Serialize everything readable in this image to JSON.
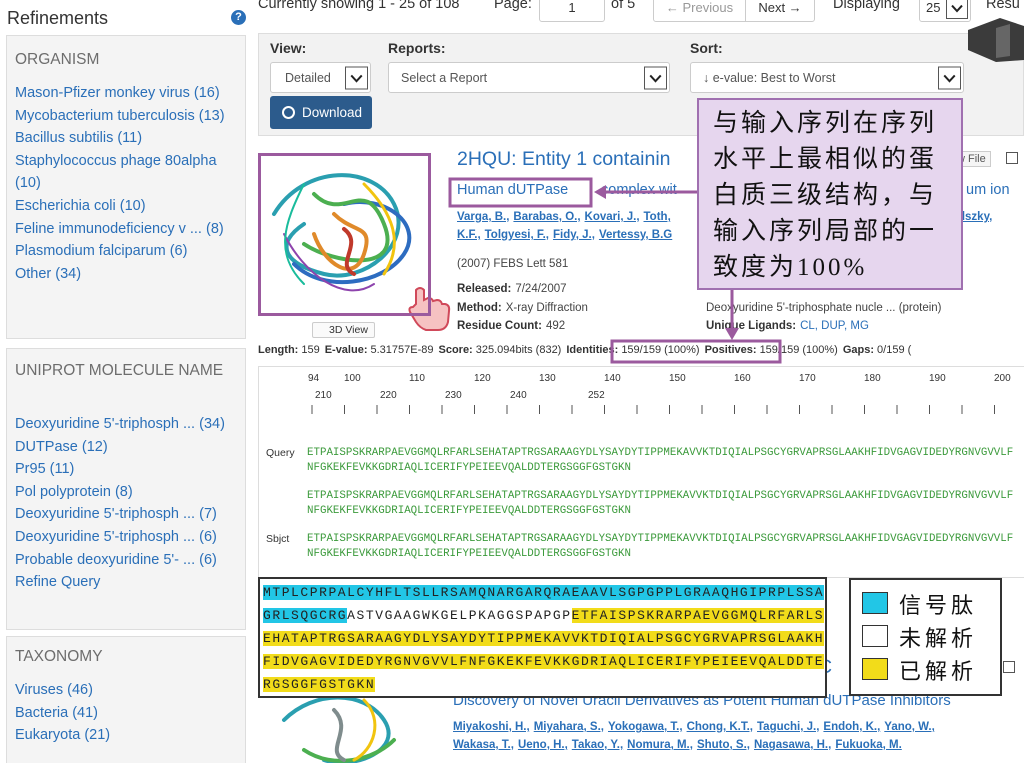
{
  "sidebar": {
    "title": "Refinements",
    "help": "?",
    "sections": [
      {
        "heading": "ORGANISM",
        "items": [
          "Mason-Pfizer monkey virus (16)",
          "Mycobacterium tuberculosis (13)",
          "Bacillus subtilis (11)",
          "Staphylococcus phage 80alpha (10)",
          "Escherichia coli (10)",
          "Feline immunodeficiency v ... (8)",
          "Plasmodium falciparum (6)",
          "Other (34)"
        ]
      },
      {
        "heading": "UNIPROT MOLECULE NAME",
        "items": [
          "Deoxyuridine 5'-triphosph ... (34)",
          "DUTPase (12)",
          "Pr95 (11)",
          "Pol polyprotein (8)",
          "Deoxyuridine 5'-triphosph ... (7)",
          "Deoxyuridine 5'-triphosph ... (6)",
          "Probable deoxyuridine 5'- ... (6)",
          "Refine Query"
        ]
      },
      {
        "heading": "TAXONOMY",
        "items": [
          "Viruses (46)",
          "Bacteria (41)",
          "Eukaryota (21)"
        ]
      }
    ]
  },
  "pager": {
    "showing": "Currently showing 1 - 25 of 108",
    "page_label": "Page:",
    "page": "1",
    "of": "of 5",
    "previous": "← Previous",
    "next": "Next →",
    "displaying_label": "Displaying",
    "displaying": "25",
    "results_label": "Resu"
  },
  "controls": {
    "view_label": "View:",
    "view": "Detailed",
    "reports_label": "Reports:",
    "reports": "Select a Report",
    "sort_label": "Sort:",
    "sort": "↓ e-value: Best to Worst",
    "download": "Download"
  },
  "results": [
    {
      "title": "2HQU: Entity 1 containin",
      "subtitle_link": "Human dUTPase",
      "subtitle_rest": "complex wit",
      "subtitle_tail": "um ion",
      "file": "w File",
      "authors_line1": [
        "Varga, B.,",
        "Barabas, O.,",
        "Kovari, J.,",
        "Toth,"
      ],
      "authors_tail": "dszky,",
      "authors_line2": [
        "K.F.,",
        "Tolgyesi, F.,",
        "Fidy, J.,",
        "Vertessy, B.G"
      ],
      "citation": "(2007) FEBS Lett 581",
      "details": [
        {
          "label": "Released:",
          "value": "7/24/2007"
        },
        {
          "label": "Method:",
          "value": "X-ray Diffraction"
        },
        {
          "label": "Residue Count:",
          "value": "492"
        }
      ],
      "molecule": "Deoxyuridine 5'-triphosphate nucle ... (protein)",
      "ligands_label": "Unique Ligands:",
      "ligands": "CL, DUP, MG",
      "view3d": "3D View",
      "stats": [
        {
          "label": "Length:",
          "value": "159"
        },
        {
          "label": "E-value:",
          "value": "5.31757E-89"
        },
        {
          "label": "Score:",
          "value": "325.094bits (832)"
        },
        {
          "label": "Identities:",
          "value": "159/159 (100%)"
        },
        {
          "label": "Positives:",
          "value": "159/159 (100%)"
        },
        {
          "label": "Gaps:",
          "value": "0/159 ("
        }
      ]
    },
    {
      "title": "C",
      "subtitle": "Discovery of Novel Uracil Derivatives as Potent Human dUTPase Inhibitors",
      "authors_line1": [
        "Miyakoshi, H.,",
        "Miyahara, S.,",
        "Yokogawa, T.,",
        "Chong, K.T.,",
        "Taguchi, J.,",
        "Endoh, K.,",
        "Yano, W.,"
      ],
      "authors_line2": [
        "Wakasa, T.,",
        "Ueno, H.,",
        "Takao, Y.,",
        "Nomura, M.,",
        "Shuto, S.,",
        "Nagasawa, H.,",
        "Fukuoka, M."
      ]
    }
  ],
  "alignment": {
    "ruler_top": [
      94,
      100,
      110,
      120,
      130,
      140,
      150,
      160,
      170,
      180,
      190,
      200
    ],
    "ruler_bottom": [
      210,
      220,
      230,
      240,
      252
    ],
    "rows": [
      {
        "label": "Query",
        "lines": [
          "ETPAISPSKRARPAEVGGMQLRFARLSEHATAPTRGSARAAGYDLYSAYDYTIPPMEKAVVKTDIQIALPSGCYGRVAPRSGLAAKHFIDVGAGVIDEDYRGNVGVVLF",
          "NFGKEKFEVKKGDRIAQLICERIFYPEIEEVQALDDTERGSGGFGSTGKN"
        ]
      },
      {
        "lines": [
          "ETPAISPSKRARPAEVGGMQLRFARLSEHATAPTRGSARAAGYDLYSAYDYTIPPMEKAVVKTDIQIALPSGCYGRVAPRSGLAAKHFIDVGAGVIDEDYRGNVGVVLF",
          "NFGKEKFEVKKGDRIAQLICERIFYPEIEEVQALDDTERGSGGFGSTGKN"
        ]
      },
      {
        "label": "Sbjct",
        "lines": [
          "ETPAISPSKRARPAEVGGMQLRFARLSEHATAPTRGSARAAGYDLYSAYDYTIPPMEKAVVKTDIQIALPSGCYGRVAPRSGLAAKHFIDVGAGVIDEDYRGNVGVVLF",
          "NFGKEKFEVKKGDRIAQLICERIFYPEIEEVQALDDTERGSGGFGSTGKN"
        ]
      }
    ]
  },
  "annotation": "与输入序列在序列水平上最相似的蛋白质三级结构，与输入序列局部的一致度为100%",
  "sequence_box": {
    "lines": [
      [
        {
          "text": "MTPLCPRPALCYHFLTSLLRSAMQNARGARQRAEAAVLSGPGPPLGRAAQHGIPRPLSSA",
          "color": "#22c6e6"
        }
      ],
      [
        {
          "text": "GRLSQGCRG",
          "color": "#22c6e6"
        },
        {
          "text": "ASTVGAAGWKGELPKAGGSPAPGP",
          "color": "#ffffff"
        },
        {
          "text": "ETFAISPSKRARPAEVGGMQLRFARLS",
          "color": "#f2dc1a"
        }
      ],
      [
        {
          "text": "EHATAPTRGSARAAGYDLYSAYDYTIPPMEKAVVKTDIQIALPSGCYGRVAPRSGLAAKH",
          "color": "#f2dc1a"
        }
      ],
      [
        {
          "text": "FIDVGAGVIDEDYRGNVGVVLFNFGKEKFEVKKGDRIAQLICERIFYPEIEEVQALDDTE",
          "color": "#f2dc1a"
        }
      ],
      [
        {
          "text": "RGSGGFGSTGKN",
          "color": "#f2dc1a"
        }
      ]
    ]
  },
  "legend": [
    {
      "label": "信号肽",
      "color": "#22c6e6"
    },
    {
      "label": "未解析",
      "color": "#ffffff"
    },
    {
      "label": "已解析",
      "color": "#f2dc1a"
    }
  ]
}
